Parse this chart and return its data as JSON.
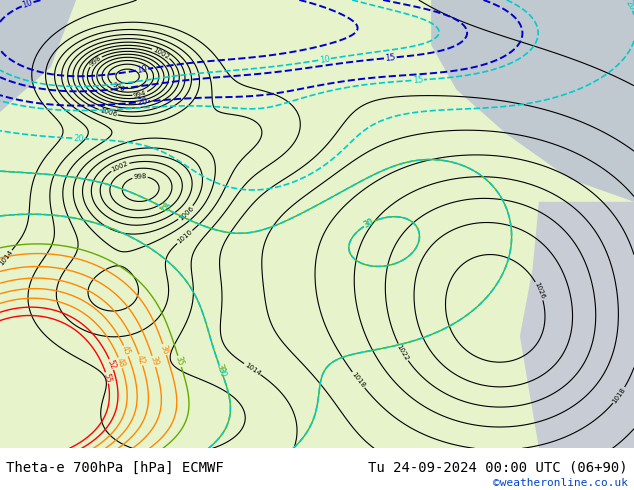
{
  "title_left": "Theta-e 700hPa [hPa] ECMWF",
  "title_right": "Tu 24-09-2024 00:00 UTC (06+90)",
  "credit": "©weatheronline.co.uk",
  "bg_color": "#ffffff",
  "land_green": "#c8e68c",
  "sea_gray": "#d0d0d0",
  "contour_black": "#000000",
  "contour_cyan": "#00cccc",
  "contour_blue": "#0000cc",
  "contour_green": "#66aa00",
  "contour_orange": "#ff8800",
  "contour_red": "#ff0000",
  "contour_purple": "#aa66aa",
  "font_size_title": 10,
  "font_size_credit": 8,
  "fig_width": 6.34,
  "fig_height": 4.9
}
